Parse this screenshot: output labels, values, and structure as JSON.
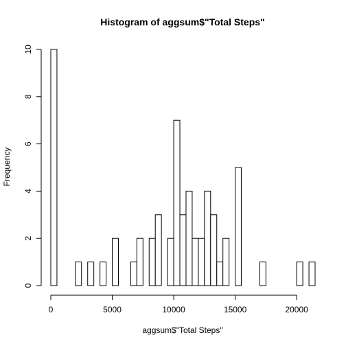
{
  "chart_data": {
    "type": "bar",
    "title": "Histogram of aggsum$\"Total Steps\"",
    "xlabel": "aggsum$\"Total Steps\"",
    "ylabel": "Frequency",
    "bin_width": 500,
    "xlim": [
      0,
      21500
    ],
    "ylim": [
      0,
      10
    ],
    "x_ticks": [
      0,
      5000,
      10000,
      15000,
      20000
    ],
    "x_tick_labels": [
      "0",
      "5000",
      "10000",
      "15000",
      "20000"
    ],
    "y_ticks": [
      0,
      2,
      4,
      6,
      8,
      10
    ],
    "y_tick_labels": [
      "0",
      "2",
      "4",
      "6",
      "8",
      "10"
    ],
    "bins": [
      {
        "start": 0,
        "end": 500,
        "count": 10
      },
      {
        "start": 2000,
        "end": 2500,
        "count": 1
      },
      {
        "start": 3000,
        "end": 3500,
        "count": 1
      },
      {
        "start": 4000,
        "end": 4500,
        "count": 1
      },
      {
        "start": 5000,
        "end": 5500,
        "count": 2
      },
      {
        "start": 6500,
        "end": 7000,
        "count": 1
      },
      {
        "start": 7000,
        "end": 7500,
        "count": 2
      },
      {
        "start": 8000,
        "end": 8500,
        "count": 2
      },
      {
        "start": 8500,
        "end": 9000,
        "count": 3
      },
      {
        "start": 9500,
        "end": 10000,
        "count": 2
      },
      {
        "start": 10000,
        "end": 10500,
        "count": 7
      },
      {
        "start": 10500,
        "end": 11000,
        "count": 3
      },
      {
        "start": 11000,
        "end": 11500,
        "count": 4
      },
      {
        "start": 11500,
        "end": 12000,
        "count": 2
      },
      {
        "start": 12000,
        "end": 12500,
        "count": 2
      },
      {
        "start": 12500,
        "end": 13000,
        "count": 4
      },
      {
        "start": 13000,
        "end": 13500,
        "count": 3
      },
      {
        "start": 13500,
        "end": 14000,
        "count": 1
      },
      {
        "start": 14000,
        "end": 14500,
        "count": 2
      },
      {
        "start": 15000,
        "end": 15500,
        "count": 5
      },
      {
        "start": 17000,
        "end": 17500,
        "count": 1
      },
      {
        "start": 20000,
        "end": 20500,
        "count": 1
      },
      {
        "start": 21000,
        "end": 21500,
        "count": 1
      }
    ],
    "grid": false
  }
}
